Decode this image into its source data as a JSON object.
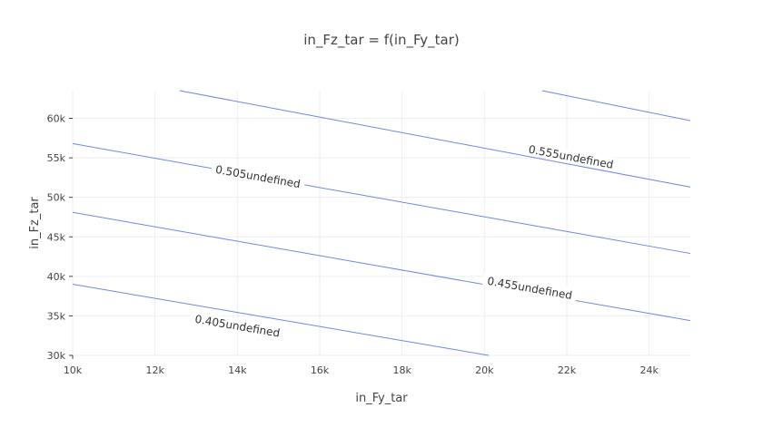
{
  "chart_data": {
    "type": "contour",
    "title": "in_Fz_tar = f(in_Fy_tar)",
    "xlabel": "in_Fy_tar",
    "ylabel": "in_Fz_tar",
    "xlim": [
      10000,
      25000
    ],
    "ylim": [
      30000,
      63500
    ],
    "x_ticks": [
      10000,
      12000,
      14000,
      16000,
      18000,
      20000,
      22000,
      24000
    ],
    "x_tick_labels": [
      "10k",
      "12k",
      "14k",
      "16k",
      "18k",
      "20k",
      "22k",
      "24k"
    ],
    "y_ticks": [
      30000,
      35000,
      40000,
      45000,
      50000,
      55000,
      60000
    ],
    "y_tick_labels": [
      "30k",
      "35k",
      "40k",
      "45k",
      "50k",
      "55k",
      "60k"
    ],
    "grid": true,
    "line_color": "#6f86e8",
    "contours": [
      {
        "level": "0.405undefined",
        "points": [
          [
            10000,
            39000
          ],
          [
            20100,
            30000
          ]
        ],
        "label_at": [
          14000,
          33700
        ]
      },
      {
        "level": "0.455undefined",
        "points": [
          [
            10000,
            48100
          ],
          [
            25000,
            34400
          ]
        ],
        "label_at": [
          21100,
          38500
        ]
      },
      {
        "level": "0.505undefined",
        "points": [
          [
            10000,
            56800
          ],
          [
            25000,
            42900
          ]
        ],
        "label_at": [
          14500,
          52600
        ]
      },
      {
        "level": "0.555undefined",
        "points": [
          [
            12600,
            63500
          ],
          [
            25000,
            51300
          ]
        ],
        "label_at": [
          22100,
          55100
        ]
      },
      {
        "level": "",
        "points": [
          [
            21400,
            63500
          ],
          [
            25000,
            59700
          ]
        ],
        "label_at": null
      }
    ]
  }
}
